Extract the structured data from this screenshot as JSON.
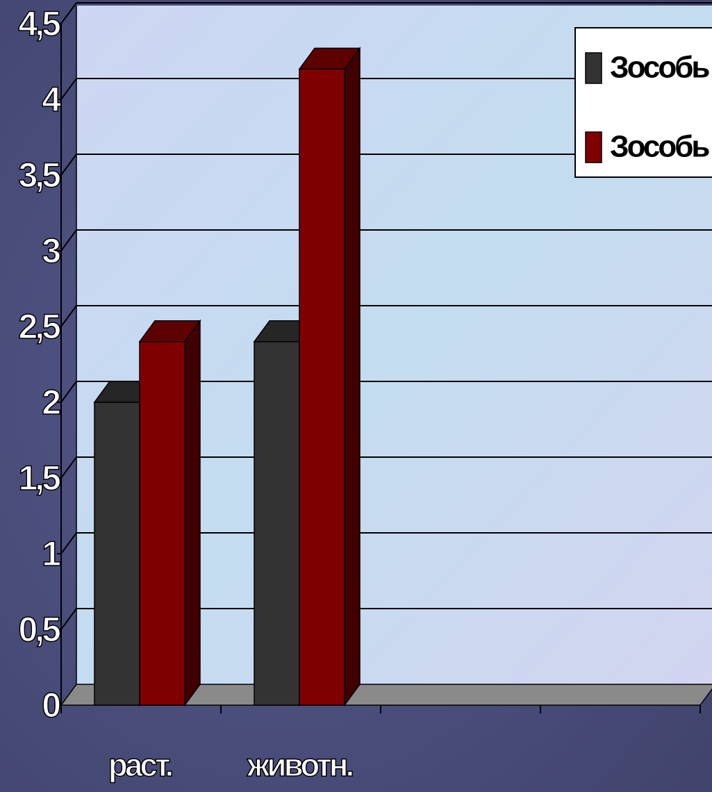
{
  "chart_data": {
    "type": "bar3d",
    "categories": [
      "раст.",
      "животн.",
      null,
      null
    ],
    "series": [
      {
        "name": "Зособь",
        "color": "#333333",
        "values": [
          2,
          2.4,
          null,
          null
        ]
      },
      {
        "name": "Зособь",
        "color": "#7f0000",
        "values": [
          2.4,
          4.2,
          null,
          null
        ]
      }
    ],
    "ylim": [
      0,
      4.5
    ],
    "yticks": [
      0,
      {
        "value": 0.5,
        "label": "0,5"
      },
      1,
      {
        "value": 1.5,
        "label": "1,5"
      },
      2,
      {
        "value": 2.5,
        "label": "2,5"
      },
      3,
      {
        "value": 3.5,
        "label": "3,5"
      },
      4,
      {
        "value": 4.5,
        "label": "4,5"
      }
    ],
    "grid": true,
    "legend": "top-right"
  }
}
